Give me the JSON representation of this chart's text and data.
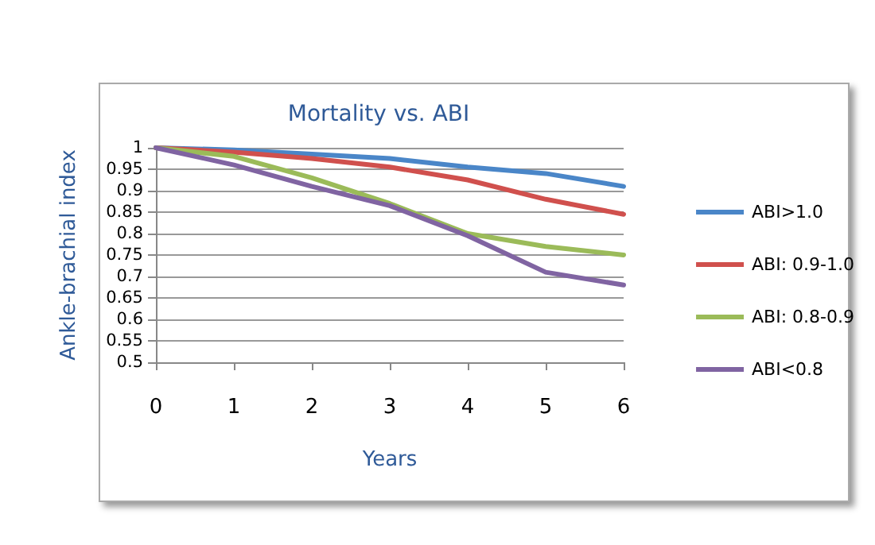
{
  "chart_data": {
    "type": "line",
    "title": "Mortality vs. ABI",
    "xlabel": "Years",
    "ylabel": "Ankle-brachial index",
    "categories": [
      "0",
      "1",
      "2",
      "3",
      "4",
      "5",
      "6"
    ],
    "series": [
      {
        "name": "ABI>1.0",
        "color": "#4a86c8",
        "values": [
          1,
          0.995,
          0.985,
          0.975,
          0.955,
          0.94,
          0.91
        ]
      },
      {
        "name": "ABI: 0.9-1.0",
        "color": "#d0504d",
        "values": [
          1,
          0.99,
          0.975,
          0.955,
          0.925,
          0.88,
          0.845
        ]
      },
      {
        "name": "ABI: 0.8-0.9",
        "color": "#9bbb59",
        "values": [
          1,
          0.98,
          0.93,
          0.87,
          0.8,
          0.77,
          0.75
        ]
      },
      {
        "name": "ABI<0.8",
        "color": "#8064a2",
        "values": [
          1,
          0.96,
          0.91,
          0.865,
          0.795,
          0.71,
          0.68
        ]
      }
    ],
    "ylim": [
      0.5,
      1
    ],
    "yticks": [
      0.5,
      0.55,
      0.6,
      0.65,
      0.7,
      0.75,
      0.8,
      0.85,
      0.9,
      0.95,
      1
    ],
    "grid": "y",
    "legend": "right",
    "marker": "none",
    "line_style": "solid"
  }
}
